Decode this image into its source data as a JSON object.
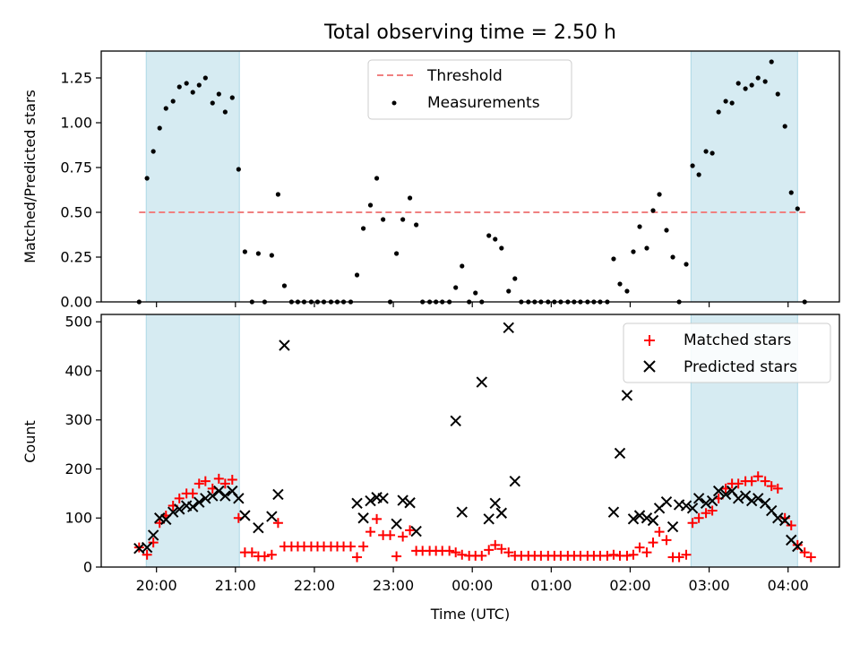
{
  "title": "Total observing time = 2.50 h",
  "xlabel": "Time (UTC)",
  "x_ticks": [
    "20:00",
    "21:00",
    "22:00",
    "23:00",
    "00:00",
    "01:00",
    "02:00",
    "03:00",
    "04:00"
  ],
  "x_range_hours": [
    -0.7,
    8.65
  ],
  "shaded_periods_hours": [
    [
      -0.13,
      1.05
    ],
    [
      6.77,
      8.12
    ]
  ],
  "colors": {
    "shade": "#add8e6",
    "threshold": "#f08080",
    "matched": "#ff0000",
    "predicted": "#000000",
    "measurement": "#000000"
  },
  "chart_data": [
    {
      "type": "scatter",
      "ylabel": "Matched/Predicted stars",
      "ylim": [
        0,
        1.4
      ],
      "y_ticks": [
        "0.00",
        "0.25",
        "0.50",
        "0.75",
        "1.00",
        "1.25"
      ],
      "legend_position": "top-center",
      "threshold": {
        "name": "Threshold",
        "value": 0.5,
        "x_start": -0.22,
        "x_end": 8.22
      },
      "series": [
        {
          "name": "Measurements",
          "points": [
            [
              -0.22,
              0.0
            ],
            [
              -0.12,
              0.69
            ],
            [
              -0.04,
              0.84
            ],
            [
              0.04,
              0.97
            ],
            [
              0.12,
              1.08
            ],
            [
              0.21,
              1.12
            ],
            [
              0.29,
              1.2
            ],
            [
              0.38,
              1.22
            ],
            [
              0.46,
              1.17
            ],
            [
              0.54,
              1.21
            ],
            [
              0.62,
              1.25
            ],
            [
              0.71,
              1.11
            ],
            [
              0.79,
              1.16
            ],
            [
              0.87,
              1.06
            ],
            [
              0.96,
              1.14
            ],
            [
              1.04,
              0.74
            ],
            [
              1.12,
              0.28
            ],
            [
              1.21,
              0.0
            ],
            [
              1.29,
              0.27
            ],
            [
              1.37,
              0.0
            ],
            [
              1.46,
              0.26
            ],
            [
              1.54,
              0.6
            ],
            [
              1.62,
              0.09
            ],
            [
              1.71,
              0.0
            ],
            [
              1.79,
              0.0
            ],
            [
              1.87,
              0.0
            ],
            [
              1.96,
              0.0
            ],
            [
              2.04,
              0.0
            ],
            [
              2.12,
              0.0
            ],
            [
              2.21,
              0.0
            ],
            [
              2.29,
              0.0
            ],
            [
              2.37,
              0.0
            ],
            [
              2.46,
              0.0
            ],
            [
              2.54,
              0.15
            ],
            [
              2.62,
              0.41
            ],
            [
              2.71,
              0.54
            ],
            [
              2.79,
              0.69
            ],
            [
              2.87,
              0.46
            ],
            [
              2.96,
              0.0
            ],
            [
              3.04,
              0.27
            ],
            [
              3.12,
              0.46
            ],
            [
              3.21,
              0.58
            ],
            [
              3.29,
              0.43
            ],
            [
              3.37,
              0.0
            ],
            [
              3.46,
              0.0
            ],
            [
              3.54,
              0.0
            ],
            [
              3.62,
              0.0
            ],
            [
              3.71,
              0.0
            ],
            [
              3.79,
              0.08
            ],
            [
              3.87,
              0.2
            ],
            [
              3.96,
              0.0
            ],
            [
              4.04,
              0.05
            ],
            [
              4.12,
              0.0
            ],
            [
              4.21,
              0.37
            ],
            [
              4.29,
              0.35
            ],
            [
              4.37,
              0.3
            ],
            [
              4.46,
              0.06
            ],
            [
              4.54,
              0.13
            ],
            [
              4.62,
              0.0
            ],
            [
              4.71,
              0.0
            ],
            [
              4.79,
              0.0
            ],
            [
              4.87,
              0.0
            ],
            [
              4.96,
              0.0
            ],
            [
              5.04,
              0.0
            ],
            [
              5.12,
              0.0
            ],
            [
              5.21,
              0.0
            ],
            [
              5.29,
              0.0
            ],
            [
              5.37,
              0.0
            ],
            [
              5.46,
              0.0
            ],
            [
              5.54,
              0.0
            ],
            [
              5.62,
              0.0
            ],
            [
              5.71,
              0.0
            ],
            [
              5.79,
              0.24
            ],
            [
              5.87,
              0.1
            ],
            [
              5.96,
              0.06
            ],
            [
              6.04,
              0.28
            ],
            [
              6.12,
              0.42
            ],
            [
              6.21,
              0.3
            ],
            [
              6.29,
              0.51
            ],
            [
              6.37,
              0.6
            ],
            [
              6.46,
              0.4
            ],
            [
              6.54,
              0.25
            ],
            [
              6.62,
              0.0
            ],
            [
              6.71,
              0.21
            ],
            [
              6.79,
              0.76
            ],
            [
              6.87,
              0.71
            ],
            [
              6.96,
              0.84
            ],
            [
              7.04,
              0.83
            ],
            [
              7.12,
              1.06
            ],
            [
              7.21,
              1.12
            ],
            [
              7.29,
              1.11
            ],
            [
              7.37,
              1.22
            ],
            [
              7.46,
              1.19
            ],
            [
              7.54,
              1.21
            ],
            [
              7.62,
              1.25
            ],
            [
              7.71,
              1.23
            ],
            [
              7.79,
              1.34
            ],
            [
              7.87,
              1.16
            ],
            [
              7.96,
              0.98
            ],
            [
              8.04,
              0.61
            ],
            [
              8.12,
              0.52
            ],
            [
              8.21,
              0.0
            ]
          ]
        }
      ]
    },
    {
      "type": "scatter",
      "ylabel": "Count",
      "ylim": [
        0,
        515
      ],
      "y_ticks": [
        "0",
        "100",
        "200",
        "300",
        "400",
        "500"
      ],
      "legend_position": "top-right",
      "series": [
        {
          "name": "Matched stars",
          "marker": "plus",
          "points": [
            [
              -0.22,
              40
            ],
            [
              -0.12,
              25
            ],
            [
              -0.04,
              50
            ],
            [
              0.04,
              90
            ],
            [
              0.12,
              105
            ],
            [
              0.21,
              125
            ],
            [
              0.29,
              140
            ],
            [
              0.38,
              150
            ],
            [
              0.46,
              150
            ],
            [
              0.54,
              170
            ],
            [
              0.62,
              175
            ],
            [
              0.71,
              160
            ],
            [
              0.79,
              180
            ],
            [
              0.87,
              170
            ],
            [
              0.96,
              178
            ],
            [
              1.04,
              100
            ],
            [
              1.12,
              30
            ],
            [
              1.21,
              30
            ],
            [
              1.29,
              22
            ],
            [
              1.37,
              22
            ],
            [
              1.46,
              25
            ],
            [
              1.54,
              90
            ],
            [
              1.62,
              42
            ],
            [
              1.71,
              42
            ],
            [
              1.79,
              42
            ],
            [
              1.87,
              42
            ],
            [
              1.96,
              42
            ],
            [
              2.04,
              42
            ],
            [
              2.12,
              42
            ],
            [
              2.21,
              42
            ],
            [
              2.29,
              42
            ],
            [
              2.37,
              42
            ],
            [
              2.46,
              42
            ],
            [
              2.54,
              20
            ],
            [
              2.62,
              42
            ],
            [
              2.71,
              72
            ],
            [
              2.79,
              98
            ],
            [
              2.87,
              65
            ],
            [
              2.96,
              65
            ],
            [
              3.04,
              22
            ],
            [
              3.12,
              62
            ],
            [
              3.21,
              75
            ],
            [
              3.29,
              33
            ],
            [
              3.37,
              33
            ],
            [
              3.46,
              33
            ],
            [
              3.54,
              33
            ],
            [
              3.62,
              33
            ],
            [
              3.71,
              33
            ],
            [
              3.79,
              30
            ],
            [
              3.87,
              25
            ],
            [
              3.96,
              23
            ],
            [
              4.04,
              23
            ],
            [
              4.12,
              23
            ],
            [
              4.21,
              35
            ],
            [
              4.29,
              45
            ],
            [
              4.37,
              37
            ],
            [
              4.46,
              30
            ],
            [
              4.54,
              23
            ],
            [
              4.62,
              23
            ],
            [
              4.71,
              23
            ],
            [
              4.79,
              23
            ],
            [
              4.87,
              23
            ],
            [
              4.96,
              23
            ],
            [
              5.04,
              23
            ],
            [
              5.12,
              23
            ],
            [
              5.21,
              23
            ],
            [
              5.29,
              23
            ],
            [
              5.37,
              23
            ],
            [
              5.46,
              23
            ],
            [
              5.54,
              23
            ],
            [
              5.62,
              23
            ],
            [
              5.71,
              23
            ],
            [
              5.79,
              25
            ],
            [
              5.87,
              23
            ],
            [
              5.96,
              23
            ],
            [
              6.04,
              25
            ],
            [
              6.12,
              40
            ],
            [
              6.21,
              30
            ],
            [
              6.29,
              50
            ],
            [
              6.37,
              72
            ],
            [
              6.46,
              55
            ],
            [
              6.54,
              20
            ],
            [
              6.62,
              20
            ],
            [
              6.71,
              25
            ],
            [
              6.79,
              90
            ],
            [
              6.87,
              100
            ],
            [
              6.96,
              110
            ],
            [
              7.04,
              115
            ],
            [
              7.12,
              140
            ],
            [
              7.21,
              160
            ],
            [
              7.29,
              170
            ],
            [
              7.37,
              170
            ],
            [
              7.46,
              175
            ],
            [
              7.54,
              175
            ],
            [
              7.62,
              185
            ],
            [
              7.71,
              175
            ],
            [
              7.79,
              165
            ],
            [
              7.87,
              160
            ],
            [
              7.96,
              100
            ],
            [
              8.04,
              85
            ],
            [
              8.12,
              45
            ],
            [
              8.21,
              30
            ],
            [
              8.29,
              20
            ]
          ]
        },
        {
          "name": "Predicted stars",
          "marker": "x",
          "points": [
            [
              -0.22,
              38
            ],
            [
              -0.12,
              40
            ],
            [
              -0.04,
              65
            ],
            [
              0.04,
              100
            ],
            [
              0.12,
              97
            ],
            [
              0.21,
              112
            ],
            [
              0.29,
              118
            ],
            [
              0.38,
              125
            ],
            [
              0.46,
              123
            ],
            [
              0.54,
              132
            ],
            [
              0.62,
              140
            ],
            [
              0.71,
              145
            ],
            [
              0.79,
              155
            ],
            [
              0.87,
              145
            ],
            [
              0.96,
              155
            ],
            [
              1.04,
              140
            ],
            [
              1.12,
              105
            ],
            [
              1.29,
              80
            ],
            [
              1.46,
              103
            ],
            [
              1.54,
              148
            ],
            [
              1.62,
              452
            ],
            [
              2.54,
              130
            ],
            [
              2.62,
              100
            ],
            [
              2.71,
              135
            ],
            [
              2.79,
              142
            ],
            [
              2.87,
              140
            ],
            [
              3.04,
              88
            ],
            [
              3.12,
              136
            ],
            [
              3.21,
              131
            ],
            [
              3.29,
              73
            ],
            [
              3.79,
              298
            ],
            [
              3.87,
              112
            ],
            [
              4.12,
              377
            ],
            [
              4.21,
              98
            ],
            [
              4.29,
              130
            ],
            [
              4.37,
              110
            ],
            [
              4.46,
              488
            ],
            [
              4.54,
              175
            ],
            [
              5.79,
              112
            ],
            [
              5.87,
              232
            ],
            [
              5.96,
              350
            ],
            [
              6.04,
              98
            ],
            [
              6.12,
              105
            ],
            [
              6.21,
              100
            ],
            [
              6.29,
              95
            ],
            [
              6.37,
              120
            ],
            [
              6.46,
              133
            ],
            [
              6.54,
              82
            ],
            [
              6.62,
              127
            ],
            [
              6.71,
              125
            ],
            [
              6.79,
              120
            ],
            [
              6.87,
              140
            ],
            [
              6.96,
              130
            ],
            [
              7.04,
              135
            ],
            [
              7.12,
              155
            ],
            [
              7.21,
              148
            ],
            [
              7.29,
              155
            ],
            [
              7.37,
              140
            ],
            [
              7.46,
              145
            ],
            [
              7.54,
              135
            ],
            [
              7.62,
              140
            ],
            [
              7.71,
              130
            ],
            [
              7.79,
              115
            ],
            [
              7.87,
              100
            ],
            [
              7.96,
              95
            ],
            [
              8.04,
              55
            ],
            [
              8.12,
              42
            ]
          ]
        }
      ]
    }
  ]
}
